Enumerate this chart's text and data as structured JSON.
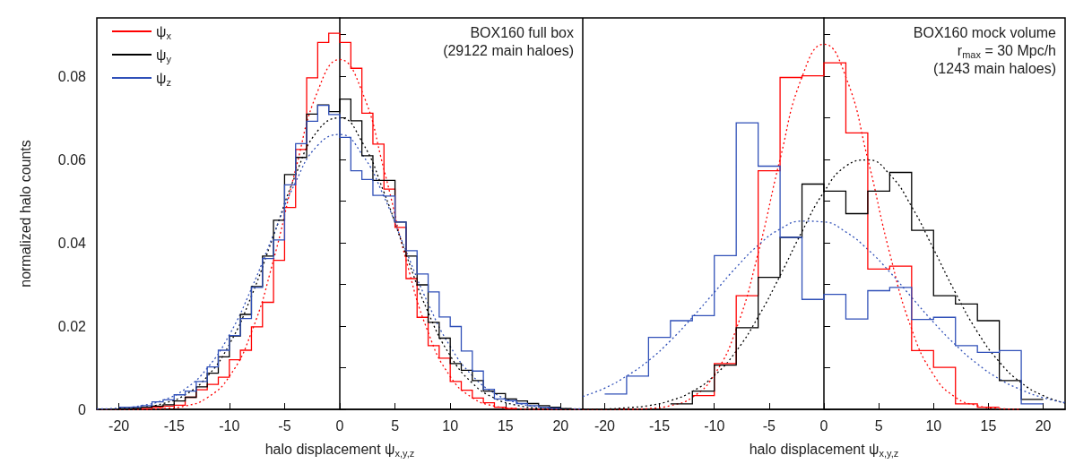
{
  "chart_data": [
    {
      "type": "step",
      "xlabel": "halo displacement ψ$_{x,y,z}$",
      "ylabel": "normalized halo counts",
      "legend": "top left",
      "annotations": [
        "BOX160 full box",
        "(29122 main haloes)"
      ],
      "xlim": [
        -22,
        22
      ],
      "xticks": [
        -20,
        -15,
        -10,
        -5,
        0,
        5,
        10,
        15,
        20
      ],
      "ylim": [
        0,
        0.094
      ],
      "yticks": [
        0,
        {
          "value": 0.01,
          "label": null
        },
        0.02,
        {
          "value": 0.03,
          "label": null
        },
        0.04,
        {
          "value": 0.05,
          "label": null
        },
        0.06,
        {
          "value": 0.07,
          "label": null
        },
        0.08,
        {
          "value": 0.09,
          "label": null
        }
      ],
      "x": [
        -20,
        -19,
        -18,
        -17,
        -16,
        -15,
        -14,
        -13,
        -12,
        -11,
        -10,
        -9,
        -8,
        -7,
        -6,
        -5,
        -4,
        -3,
        -2,
        -1,
        0,
        1,
        2,
        3,
        4,
        5,
        6,
        7,
        8,
        9,
        10,
        11,
        12,
        13,
        14,
        15,
        16,
        17,
        18,
        19,
        20,
        21
      ],
      "series": [
        {
          "name": "ψ$_{x}$",
          "color": "#ff0000",
          "values": [
            null,
            null,
            0.0002,
            0.0005,
            0.0008,
            0.001,
            0.0029,
            0.0047,
            0.006,
            0.0077,
            0.0119,
            0.0142,
            0.0198,
            0.0257,
            0.0358,
            0.0485,
            0.0624,
            0.0796,
            0.0881,
            0.0903,
            0.0881,
            0.0819,
            0.0711,
            0.0637,
            0.0529,
            0.0437,
            0.0314,
            0.0221,
            0.0153,
            0.0123,
            0.0067,
            0.0046,
            0.0027,
            0.0016,
            0.0005,
            0.0002,
            0.0002,
            null,
            null,
            null,
            null,
            null
          ]
        },
        {
          "name": "ψ$_{y}$",
          "color": "#000000",
          "values": [
            0.0002,
            0.0003,
            0.0005,
            0.0008,
            0.0011,
            0.002,
            0.0029,
            0.0054,
            0.0087,
            0.0126,
            0.0176,
            0.0228,
            0.0295,
            0.0368,
            0.0454,
            0.0564,
            0.0605,
            0.0709,
            0.0731,
            0.0715,
            0.0745,
            0.0693,
            0.0609,
            0.055,
            0.055,
            0.045,
            0.0368,
            0.0299,
            0.0209,
            0.0171,
            0.011,
            0.0094,
            0.0069,
            0.0044,
            0.0038,
            0.0025,
            0.002,
            0.0014,
            0.0009,
            0.0005,
            0.0002,
            0.0002
          ]
        },
        {
          "name": "ψ$_{z}$",
          "color": "#3050b8",
          "values": [
            0.0005,
            0.0006,
            0.0009,
            0.0018,
            0.0023,
            0.0035,
            0.0044,
            0.0067,
            0.0102,
            0.0142,
            0.0177,
            0.0218,
            0.0293,
            0.0362,
            0.0407,
            0.0539,
            0.0638,
            0.0692,
            0.073,
            0.0708,
            0.0653,
            0.0573,
            0.0552,
            0.0514,
            0.0512,
            0.045,
            0.0381,
            0.0325,
            0.0282,
            0.0222,
            0.0199,
            0.014,
            0.0092,
            0.0048,
            0.0025,
            0.0021,
            0.0014,
            0.0009,
            0.0005,
            0.0003,
            0.0003,
            null
          ]
        },
        {
          "type": "line",
          "line_style": "dotted",
          "color": "#ff0000",
          "x": [
            -22,
            -20,
            -18,
            -16,
            -14,
            -12,
            -10,
            -8,
            -6,
            -4,
            -2,
            0,
            2,
            4,
            6,
            8,
            10,
            12,
            14,
            16,
            18,
            20,
            22
          ],
          "values": [
            0,
            0,
            0,
            0.0002,
            0.0008,
            0.0028,
            0.0079,
            0.0185,
            0.0359,
            0.0576,
            0.0764,
            0.084,
            0.0764,
            0.0576,
            0.0359,
            0.0185,
            0.0079,
            0.0028,
            0.0008,
            0.0002,
            0,
            0,
            0
          ]
        },
        {
          "type": "line",
          "line_style": "dotted",
          "color": "#000000",
          "x": [
            -22,
            -20,
            -18,
            -16,
            -14,
            -12,
            -10,
            -8,
            -6,
            -4,
            -2,
            0,
            2,
            4,
            6,
            8,
            10,
            12,
            14,
            16,
            18,
            20,
            22
          ],
          "values": [
            0,
            0.0001,
            0.0005,
            0.0014,
            0.0035,
            0.0079,
            0.0156,
            0.0272,
            0.0417,
            0.0563,
            0.0669,
            0.07,
            0.0643,
            0.0521,
            0.0372,
            0.0233,
            0.0129,
            0.0063,
            0.0027,
            0.001,
            0.0003,
            0.0001,
            0
          ]
        },
        {
          "type": "line",
          "line_style": "dotted",
          "color": "#3050b8",
          "x": [
            -22,
            -20,
            -18,
            -16,
            -14,
            -12,
            -10,
            -8,
            -6,
            -4,
            -2,
            0,
            2,
            4,
            6,
            8,
            10,
            12,
            14,
            16,
            18,
            20,
            22
          ],
          "values": [
            0.0001,
            0.0003,
            0.0009,
            0.0022,
            0.0049,
            0.0099,
            0.0179,
            0.029,
            0.042,
            0.0546,
            0.0634,
            0.066,
            0.0613,
            0.0511,
            0.038,
            0.0254,
            0.0151,
            0.0081,
            0.0039,
            0.0016,
            0.0006,
            0.0002,
            0.0001
          ]
        }
      ]
    },
    {
      "type": "step",
      "xlabel": "halo displacement ψ$_{x,y,z}$",
      "tick_labels": "x",
      "annotations": [
        "BOX160 mock volume",
        "r$_{max}$ = 30 Mpc/h",
        "(1243 main haloes)"
      ],
      "xlim": [
        -22,
        22
      ],
      "xticks": [
        -20,
        -15,
        -10,
        -5,
        0,
        5,
        10,
        15,
        20
      ],
      "ylim": [
        0,
        0.094
      ],
      "yticks": [
        0,
        {
          "value": 0.01,
          "label": null
        },
        0.02,
        {
          "value": 0.03,
          "label": null
        },
        0.04,
        {
          "value": 0.05,
          "label": null
        },
        0.06,
        {
          "value": 0.07,
          "label": null
        },
        0.08,
        {
          "value": 0.09,
          "label": null
        }
      ],
      "x": [
        -20,
        -18,
        -16,
        -14,
        -12,
        -10,
        -8,
        -6,
        -4,
        -2,
        0,
        2,
        4,
        6,
        8,
        10,
        12,
        14,
        16,
        18,
        20
      ],
      "series": [
        {
          "color": "#ff0000",
          "values": [
            null,
            null,
            null,
            null,
            0.0033,
            0.011,
            0.0273,
            0.0573,
            0.0797,
            0.0801,
            0.0832,
            0.0664,
            0.0337,
            0.0344,
            0.0141,
            0.0101,
            0.0013,
            0.0005,
            0.0005,
            null,
            null
          ]
        },
        {
          "color": "#000000",
          "values": [
            null,
            null,
            null,
            0.0013,
            0.0044,
            0.0106,
            0.0196,
            0.0317,
            0.0413,
            0.0541,
            0.0524,
            0.047,
            0.0524,
            0.0569,
            0.043,
            0.0273,
            0.0253,
            0.0213,
            0.0069,
            0.0024,
            0.0024
          ]
        },
        {
          "color": "#3050b8",
          "values": [
            0.0037,
            0.008,
            0.0173,
            0.0213,
            0.0225,
            0.0369,
            0.0688,
            0.0584,
            0.0413,
            0.0264,
            0.0276,
            0.0217,
            0.0285,
            0.0293,
            0.0216,
            0.0221,
            0.0153,
            0.0137,
            0.0141,
            0.0013,
            0.0013
          ]
        },
        {
          "type": "line",
          "line_style": "dotted",
          "color": "#ff0000",
          "x": [
            -22,
            -20,
            -18,
            -16,
            -14,
            -12,
            -10,
            -8,
            -6,
            -4,
            -2,
            0,
            2,
            4,
            6,
            8,
            10,
            12,
            14,
            16,
            18
          ],
          "values": [
            0,
            0,
            0,
            0.0002,
            0.0009,
            0.0029,
            0.0083,
            0.0193,
            0.0375,
            0.0601,
            0.0798,
            0.0877,
            0.0798,
            0.0601,
            0.0375,
            0.0193,
            0.0083,
            0.0029,
            0.0009,
            0.0002,
            0
          ]
        },
        {
          "type": "line",
          "line_style": "dotted",
          "color": "#000000",
          "x": [
            -22,
            -20,
            -18,
            -16,
            -14,
            -12,
            -10,
            -8,
            -6,
            -4,
            -2,
            0,
            2,
            4,
            6,
            8,
            10,
            12,
            14,
            16,
            18,
            20,
            22
          ],
          "values": [
            0.0001,
            0.0001,
            0.0004,
            0.0009,
            0.0021,
            0.0043,
            0.0081,
            0.014,
            0.0222,
            0.0321,
            0.0427,
            0.0522,
            0.0584,
            0.0599,
            0.0564,
            0.0487,
            0.0385,
            0.028,
            0.0186,
            0.0114,
            0.0064,
            0.0033,
            0.0015
          ]
        },
        {
          "type": "line",
          "line_style": "dotted",
          "color": "#3050b8",
          "x": [
            -22,
            -20,
            -18,
            -16,
            -14,
            -12,
            -10,
            -8,
            -6,
            -4,
            -2,
            0,
            2,
            4,
            6,
            8,
            10,
            12,
            14,
            16,
            18,
            20,
            22
          ],
          "values": [
            0.0031,
            0.0051,
            0.008,
            0.0117,
            0.0165,
            0.0221,
            0.0281,
            0.0341,
            0.0394,
            0.0433,
            0.0452,
            0.045,
            0.0426,
            0.0384,
            0.033,
            0.0269,
            0.0209,
            0.0155,
            0.0109,
            0.0073,
            0.0047,
            0.0028,
            0.0016
          ]
        }
      ]
    }
  ]
}
